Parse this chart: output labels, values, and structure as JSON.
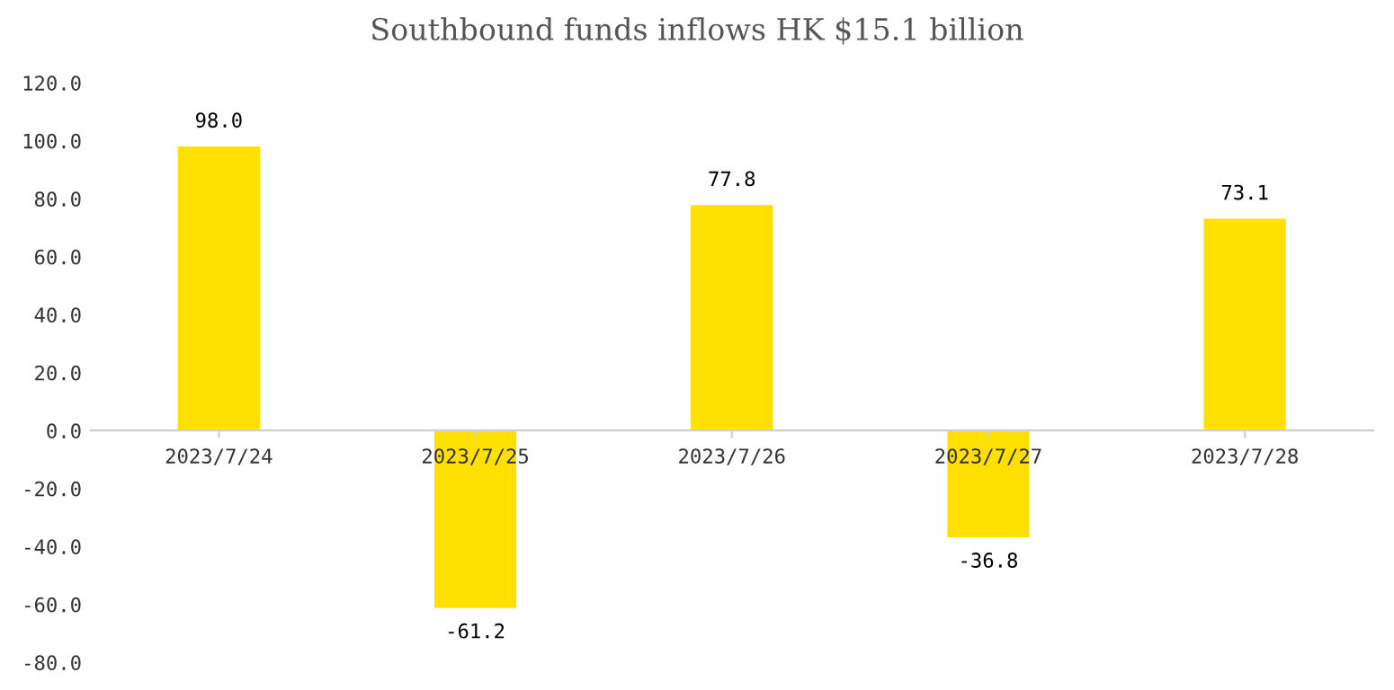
{
  "chart_data": {
    "type": "bar",
    "title": "Southbound funds inflows HK $15.1 billion",
    "categories": [
      "2023/7/24",
      "2023/7/25",
      "2023/7/26",
      "2023/7/27",
      "2023/7/28"
    ],
    "values": [
      98.0,
      -61.2,
      77.8,
      -36.8,
      73.1
    ],
    "color": "#ffe000",
    "ylim": [
      -80,
      120
    ],
    "yticks": [
      {
        "value": -80,
        "label": "-80.0"
      },
      {
        "value": -60,
        "label": "-60.0"
      },
      {
        "value": -40,
        "label": "-40.0"
      },
      {
        "value": -20,
        "label": "-20.0"
      },
      {
        "value": 0,
        "label": "0.0"
      },
      {
        "value": 20,
        "label": "20.0"
      },
      {
        "value": 40,
        "label": "40.0"
      },
      {
        "value": 60,
        "label": "60.0"
      },
      {
        "value": 80,
        "label": "80.0"
      },
      {
        "value": 100,
        "label": "100.0"
      },
      {
        "value": 120,
        "label": "120.0"
      }
    ],
    "value_labels": [
      "98.0",
      "-61.2",
      "77.8",
      "-36.8",
      "73.1"
    ],
    "grid": false,
    "legend": false
  }
}
